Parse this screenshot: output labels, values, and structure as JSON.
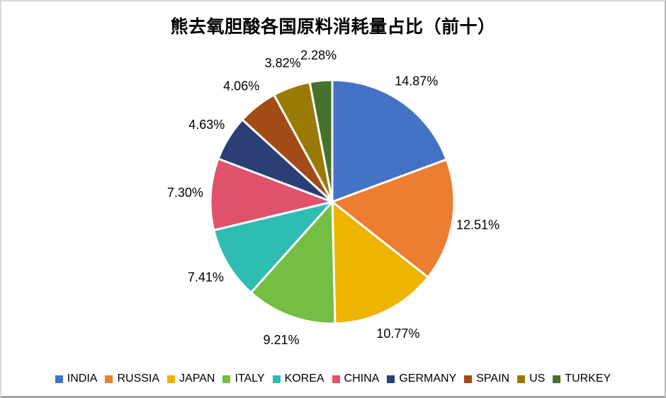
{
  "chart_data": {
    "type": "pie",
    "title": "熊去氧胆酸各国原料消耗量占比（前十）",
    "categories": [
      "INDIA",
      "RUSSIA",
      "JAPAN",
      "ITALY",
      "KOREA",
      "CHINA",
      "GERMANY",
      "SPAIN",
      "US",
      "TURKEY"
    ],
    "values": [
      14.87,
      12.51,
      10.77,
      9.21,
      7.41,
      7.3,
      4.63,
      4.06,
      3.82,
      2.28
    ],
    "labels": [
      "14.87%",
      "12.51%",
      "10.77%",
      "9.21%",
      "7.41%",
      "7.30%",
      "4.63%",
      "4.06%",
      "3.82%",
      "2.28%"
    ],
    "colors": [
      "#4472C4",
      "#ED7D31",
      "#EEB402",
      "#74BE44",
      "#2FBDB2",
      "#E0526B",
      "#2A3F74",
      "#A34B17",
      "#9A7A07",
      "#47722C"
    ],
    "legend_position": "bottom",
    "label_position": "outside",
    "slice_border_color": "#ffffff",
    "start_angle_deg": 0,
    "direction": "clockwise"
  }
}
